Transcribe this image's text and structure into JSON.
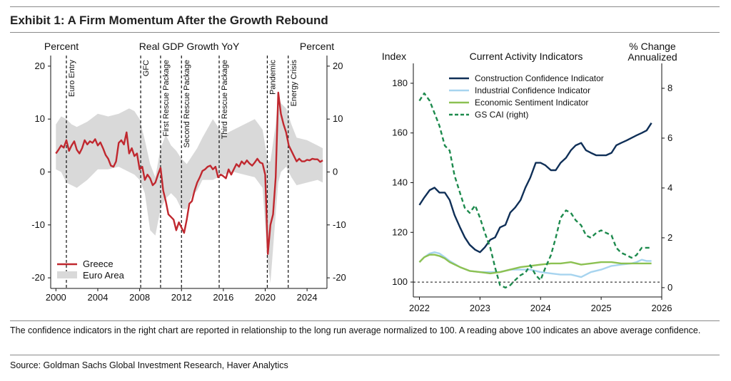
{
  "exhibit_title": "Exhibit 1: A Firm Momentum After the Growth Rebound",
  "note": "The confidence indicators in the right chart are reported in relationship to the long run average normalized to 100. A reading above 100 indicates an above average confidence.",
  "source": "Source: Goldman Sachs Global Investment Research, Haver Analytics",
  "colors": {
    "greece": "#c0282f",
    "euro_area_band": "#d9d9d9",
    "construction": "#0f2f57",
    "industrial": "#a7d4ef",
    "economic_sentiment": "#8cc152",
    "gs_cai": "#1d8a4d"
  },
  "chart_data": [
    {
      "type": "area",
      "title": "Real GDP Growth YoY",
      "ylabel": "Percent",
      "ylabel_right": "Percent",
      "xlim": [
        1999.5,
        2025.9
      ],
      "ylim": [
        -22,
        22
      ],
      "x_ticks": [
        2000,
        2004,
        2008,
        2012,
        2016,
        2020,
        2024
      ],
      "y_ticks": [
        -20,
        -10,
        0,
        10,
        20
      ],
      "legend": {
        "placement": "bottom-left",
        "entries": [
          "Greece",
          "Euro Area"
        ]
      },
      "event_lines": [
        {
          "x": 2001.0,
          "label": "Euro Entry"
        },
        {
          "x": 2008.1,
          "label": "GFC"
        },
        {
          "x": 2010.0,
          "label": "First Rescue Package"
        },
        {
          "x": 2012.0,
          "label": "Second Rescue Package"
        },
        {
          "x": 2015.6,
          "label": "Third Rescue Package"
        },
        {
          "x": 2020.2,
          "label": "Pandemic"
        },
        {
          "x": 2022.2,
          "label": "Energy Crisis"
        }
      ],
      "series": [
        {
          "name": "Greece",
          "x": [
            2000.0,
            2000.25,
            2000.5,
            2000.75,
            2001.0,
            2001.25,
            2001.5,
            2001.75,
            2002.0,
            2002.25,
            2002.5,
            2002.75,
            2003.0,
            2003.25,
            2003.5,
            2003.75,
            2004.0,
            2004.25,
            2004.5,
            2004.75,
            2005.0,
            2005.25,
            2005.5,
            2005.75,
            2006.0,
            2006.25,
            2006.5,
            2006.75,
            2007.0,
            2007.25,
            2007.5,
            2007.75,
            2008.0,
            2008.25,
            2008.5,
            2008.75,
            2009.0,
            2009.25,
            2009.5,
            2009.75,
            2010.0,
            2010.25,
            2010.5,
            2010.75,
            2011.0,
            2011.25,
            2011.5,
            2011.75,
            2012.0,
            2012.25,
            2012.5,
            2012.75,
            2013.0,
            2013.25,
            2013.5,
            2013.75,
            2014.0,
            2014.25,
            2014.5,
            2014.75,
            2015.0,
            2015.25,
            2015.5,
            2015.75,
            2016.0,
            2016.25,
            2016.5,
            2016.75,
            2017.0,
            2017.25,
            2017.5,
            2017.75,
            2018.0,
            2018.25,
            2018.5,
            2018.75,
            2019.0,
            2019.25,
            2019.5,
            2019.75,
            2020.0,
            2020.25,
            2020.5,
            2020.75,
            2021.0,
            2021.25,
            2021.5,
            2021.75,
            2022.0,
            2022.25,
            2022.5,
            2022.75,
            2023.0,
            2023.25,
            2023.5,
            2023.75,
            2024.0,
            2024.25,
            2024.5,
            2024.75,
            2025.0,
            2025.25,
            2025.5
          ],
          "values": [
            3.5,
            4.2,
            5.0,
            4.6,
            6.0,
            4.0,
            5.0,
            5.8,
            4.2,
            3.5,
            4.5,
            6.0,
            5.2,
            5.8,
            5.5,
            6.2,
            5.0,
            5.6,
            4.5,
            3.2,
            2.5,
            1.2,
            1.0,
            2.0,
            5.5,
            6.0,
            5.2,
            7.5,
            3.5,
            4.5,
            3.0,
            3.5,
            0.5,
            1.0,
            -1.5,
            -0.5,
            -1.2,
            -2.5,
            -2.0,
            -0.5,
            0.8,
            -3.5,
            -5.5,
            -8.0,
            -8.5,
            -9.0,
            -11.0,
            -9.5,
            -10.5,
            -11.5,
            -9.0,
            -6.0,
            -5.5,
            -3.5,
            -2.0,
            -1.0,
            0.2,
            0.5,
            1.0,
            1.2,
            0.5,
            1.0,
            -1.0,
            -0.5,
            -0.8,
            -1.2,
            0.5,
            -0.5,
            0.5,
            1.5,
            1.0,
            2.0,
            1.5,
            2.2,
            1.6,
            1.2,
            1.8,
            2.5,
            1.8,
            1.6,
            -0.5,
            -15.5,
            -10.0,
            -8.0,
            -1.0,
            15.0,
            11.0,
            9.0,
            7.5,
            5.0,
            4.0,
            3.0,
            2.0,
            2.5,
            2.0,
            2.0,
            2.3,
            2.2,
            2.5,
            2.4,
            2.4,
            1.9,
            2.2
          ]
        },
        {
          "name": "Euro Area",
          "x": [
            2000.0,
            2000.5,
            2001.0,
            2001.5,
            2002.0,
            2003.0,
            2004.0,
            2005.0,
            2006.0,
            2007.0,
            2007.5,
            2008.0,
            2008.5,
            2009.0,
            2009.5,
            2010.0,
            2010.5,
            2011.0,
            2011.5,
            2012.0,
            2012.5,
            2013.0,
            2013.5,
            2014.0,
            2015.0,
            2016.0,
            2017.0,
            2018.0,
            2019.0,
            2019.75,
            2020.25,
            2020.5,
            2021.0,
            2021.25,
            2021.5,
            2022.0,
            2022.5,
            2023.0,
            2024.0,
            2025.0,
            2025.5
          ],
          "upper": [
            9.0,
            10.5,
            10.0,
            9.0,
            8.5,
            9.5,
            11.0,
            10.5,
            11.0,
            12.0,
            11.5,
            10.0,
            6.0,
            1.5,
            -1.0,
            4.5,
            7.0,
            5.0,
            4.0,
            2.5,
            1.5,
            3.0,
            4.5,
            6.5,
            10.0,
            7.0,
            8.0,
            9.0,
            10.0,
            8.0,
            2.0,
            2.0,
            9.0,
            14.5,
            13.0,
            12.0,
            9.0,
            6.5,
            6.0,
            5.0,
            4.5
          ],
          "lower": [
            0.5,
            0.0,
            -2.0,
            -2.5,
            -3.0,
            -1.5,
            0.5,
            0.5,
            1.0,
            0.0,
            -0.5,
            -1.5,
            -4.0,
            -11.0,
            -12.0,
            -7.0,
            -5.0,
            -4.0,
            -5.0,
            -7.0,
            -7.0,
            -4.5,
            -3.5,
            -1.5,
            -1.5,
            -0.5,
            0.0,
            -0.5,
            -1.0,
            -3.0,
            -17.5,
            -21.0,
            -8.0,
            -2.0,
            0.0,
            1.0,
            -1.0,
            -2.5,
            -2.0,
            -1.5,
            -2.0
          ]
        }
      ]
    },
    {
      "type": "line",
      "title": "Current Activity Indicators",
      "ylabel": "Index",
      "ylabel_right": "% Change Annualized",
      "xlim": [
        2021.9,
        2026.0
      ],
      "ylim": [
        94,
        188
      ],
      "y_right_lim": [
        -0.375,
        9.0
      ],
      "x_ticks": [
        2022,
        2023,
        2024,
        2025,
        2026
      ],
      "y_ticks": [
        100,
        120,
        140,
        160,
        180
      ],
      "y_right_ticks": [
        0,
        2,
        4,
        6,
        8
      ],
      "reference_line": {
        "y": 100,
        "style": "dashed"
      },
      "legend": {
        "placement": "top",
        "entries": [
          "Construction Confidence Indicator",
          "Industrial Confidence Indicator",
          "Economic Sentiment Indicator",
          "GS CAI (right)"
        ]
      },
      "series": [
        {
          "name": "Construction Confidence Indicator",
          "x": [
            2022.0,
            2022.08,
            2022.17,
            2022.25,
            2022.33,
            2022.42,
            2022.5,
            2022.58,
            2022.67,
            2022.75,
            2022.83,
            2022.92,
            2023.0,
            2023.08,
            2023.17,
            2023.25,
            2023.33,
            2023.42,
            2023.5,
            2023.58,
            2023.67,
            2023.75,
            2023.83,
            2023.92,
            2024.0,
            2024.08,
            2024.17,
            2024.25,
            2024.33,
            2024.42,
            2024.5,
            2024.58,
            2024.67,
            2024.75,
            2024.83,
            2024.92,
            2025.0,
            2025.08,
            2025.17,
            2025.25,
            2025.33,
            2025.42,
            2025.5,
            2025.58,
            2025.67,
            2025.75,
            2025.83
          ],
          "values": [
            131,
            134,
            137,
            138,
            136,
            136,
            133,
            127,
            122,
            118,
            115,
            113,
            112,
            114,
            117,
            118,
            122,
            123,
            128,
            130,
            133,
            138,
            142,
            148,
            148,
            147,
            145,
            145,
            148,
            150,
            153,
            155,
            156,
            153,
            152,
            151,
            151,
            151,
            152,
            155,
            156,
            157,
            158,
            159,
            160,
            161,
            164
          ]
        },
        {
          "name": "Industrial Confidence Indicator",
          "x": [
            2022.0,
            2022.08,
            2022.17,
            2022.25,
            2022.33,
            2022.42,
            2022.5,
            2022.67,
            2022.83,
            2023.0,
            2023.17,
            2023.33,
            2023.5,
            2023.67,
            2023.83,
            2024.0,
            2024.17,
            2024.33,
            2024.5,
            2024.67,
            2024.83,
            2025.0,
            2025.17,
            2025.33,
            2025.5,
            2025.58,
            2025.67,
            2025.75,
            2025.83
          ],
          "values": [
            108,
            110,
            111.5,
            112,
            111.5,
            110,
            108.5,
            106,
            104.5,
            104,
            104,
            104,
            105,
            105,
            105,
            104,
            103.5,
            103,
            103,
            102,
            104,
            105,
            106.5,
            107,
            107.5,
            108,
            109,
            108.5,
            108.5
          ]
        },
        {
          "name": "Economic Sentiment Indicator",
          "x": [
            2022.0,
            2022.08,
            2022.17,
            2022.25,
            2022.33,
            2022.42,
            2022.5,
            2022.67,
            2022.83,
            2023.0,
            2023.17,
            2023.33,
            2023.5,
            2023.67,
            2023.83,
            2024.0,
            2024.17,
            2024.33,
            2024.5,
            2024.67,
            2024.83,
            2025.0,
            2025.17,
            2025.33,
            2025.5,
            2025.67,
            2025.83
          ],
          "values": [
            108,
            110,
            111,
            111,
            110.5,
            109.5,
            108,
            106,
            104.5,
            104,
            103.5,
            104,
            105,
            106,
            106.5,
            107,
            107.5,
            107.5,
            108,
            107,
            107.5,
            108,
            108,
            107.5,
            107.5,
            107.5,
            107.5
          ]
        },
        {
          "name": "GS CAI (right)",
          "axis": "right",
          "x": [
            2022.0,
            2022.08,
            2022.17,
            2022.25,
            2022.33,
            2022.42,
            2022.5,
            2022.58,
            2022.67,
            2022.75,
            2022.83,
            2022.92,
            2023.0,
            2023.08,
            2023.17,
            2023.25,
            2023.33,
            2023.42,
            2023.5,
            2023.58,
            2023.67,
            2023.75,
            2023.83,
            2023.92,
            2024.0,
            2024.08,
            2024.17,
            2024.25,
            2024.33,
            2024.42,
            2024.5,
            2024.58,
            2024.67,
            2024.75,
            2024.83,
            2024.92,
            2025.0,
            2025.08,
            2025.17,
            2025.25,
            2025.33,
            2025.42,
            2025.5,
            2025.58,
            2025.67,
            2025.75,
            2025.83
          ],
          "values": [
            7.5,
            7.8,
            7.5,
            7.0,
            6.5,
            5.7,
            5.5,
            4.5,
            3.8,
            3.2,
            3.0,
            3.3,
            2.8,
            2.2,
            1.6,
            0.8,
            0.1,
            0.0,
            0.1,
            0.3,
            0.5,
            0.6,
            0.9,
            0.5,
            0.3,
            0.8,
            1.3,
            2.0,
            2.8,
            3.1,
            3.0,
            2.7,
            2.5,
            2.1,
            2.0,
            2.2,
            2.3,
            2.2,
            2.1,
            1.6,
            1.4,
            1.3,
            1.2,
            1.3,
            1.6,
            1.6,
            1.6
          ]
        }
      ]
    }
  ]
}
